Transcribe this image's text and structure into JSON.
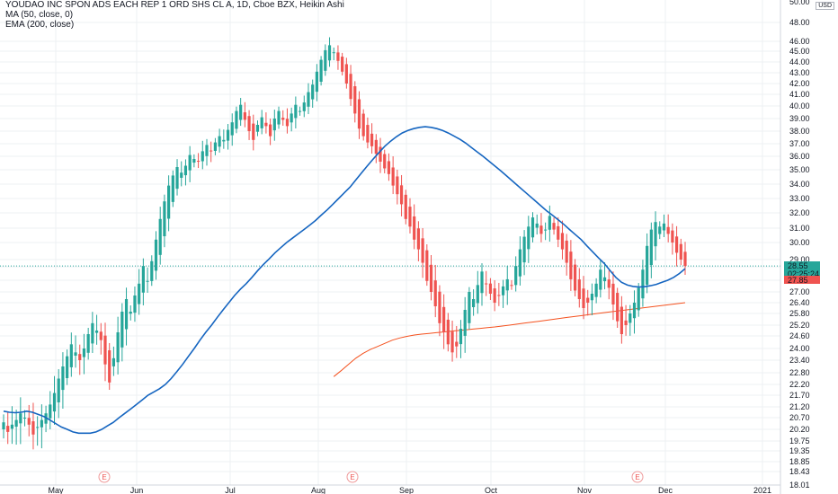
{
  "legend": {
    "title": "YOUDAO INC SPON ADS EACH REP 1 ORD SHS CL A, 1D, Cboe BZX, Heikin Ashi",
    "ma": "MA (50, close, 0)",
    "ema": "EMA (200, close)"
  },
  "currency": "USD",
  "colors": {
    "up": "#26a69a",
    "down": "#ef5350",
    "ma": "#1565c0",
    "ema": "#f4511e",
    "grid": "#eef0f3",
    "price_line": "#26a69a"
  },
  "chart_data": {
    "type": "candlestick",
    "style": "Heikin Ashi",
    "x_labels": [
      "May",
      "Jun",
      "Jul",
      "Aug",
      "Sep",
      "Oct",
      "Nov",
      "Dec",
      "2021"
    ],
    "y_ticks": [
      "18.01",
      "18.43",
      "18.85",
      "19.35",
      "19.75",
      "20.20",
      "20.70",
      "21.20",
      "21.70",
      "22.20",
      "22.80",
      "23.40",
      "24.00",
      "24.60",
      "25.20",
      "25.80",
      "26.40",
      "27.00",
      "27.85",
      "28.55",
      "29.00",
      "30.00",
      "31.00",
      "32.00",
      "33.00",
      "34.00",
      "35.00",
      "36.00",
      "37.00",
      "38.00",
      "39.00",
      "40.00",
      "41.00",
      "42.00",
      "43.00",
      "44.00",
      "45.00",
      "46.00",
      "48.00"
    ],
    "top_tick": "50.00",
    "price_labels": [
      {
        "text": "28.55",
        "color": "#26a69a"
      },
      {
        "text": "02:25:24",
        "color": "#26a69a"
      },
      {
        "text": "27.85",
        "color": "#ef5350"
      }
    ],
    "earnings_marker": "E",
    "earnings_count": 3,
    "grid": true,
    "candle_count": 162,
    "closes": [
      20.5,
      20.1,
      20.4,
      20.6,
      20.9,
      20.7,
      20.4,
      20.0,
      20.3,
      20.6,
      20.9,
      21.3,
      21.8,
      22.5,
      23.1,
      23.6,
      24.2,
      23.8,
      23.4,
      24.0,
      24.7,
      25.3,
      24.9,
      24.4,
      23.2,
      22.3,
      23.5,
      24.8,
      25.9,
      26.6,
      25.9,
      26.8,
      27.6,
      28.6,
      27.8,
      28.9,
      30.2,
      31.6,
      32.8,
      33.9,
      34.6,
      35.2,
      34.8,
      35.3,
      36.1,
      35.8,
      35.6,
      36.4,
      36.9,
      36.4,
      37.1,
      37.6,
      37.3,
      38.1,
      38.7,
      39.6,
      40.1,
      38.9,
      38.0,
      37.3,
      38.5,
      39.1,
      38.4,
      37.6,
      39.0,
      39.6,
      38.9,
      38.4,
      39.4,
      40.1,
      39.6,
      40.3,
      41.2,
      41.9,
      43.1,
      44.2,
      45.1,
      45.6,
      44.9,
      44.1,
      43.1,
      42.0,
      40.6,
      39.4,
      38.2,
      37.6,
      37.1,
      36.8,
      36.2,
      35.6,
      35.1,
      34.7,
      33.9,
      33.3,
      32.6,
      31.6,
      31.1,
      30.2,
      29.6,
      28.8,
      27.8,
      27.0,
      26.2,
      25.3,
      24.8,
      24.2,
      23.8,
      24.1,
      25.0,
      26.0,
      27.0,
      26.6,
      27.5,
      28.3,
      27.6,
      26.9,
      26.4,
      26.8,
      27.4,
      27.9,
      27.5,
      28.6,
      29.6,
      30.4,
      31.1,
      31.7,
      31.3,
      30.6,
      30.9,
      31.8,
      30.9,
      30.2,
      29.6,
      28.8,
      27.9,
      27.1,
      26.6,
      26.1,
      26.4,
      26.9,
      27.6,
      28.4,
      28.0,
      27.3,
      26.3,
      25.4,
      24.7,
      25.2,
      25.8,
      26.4,
      27.3,
      28.4,
      29.8,
      30.9,
      31.4,
      31.1,
      31.3,
      30.6,
      30.0,
      29.4,
      29.0,
      28.6
    ],
    "ma50": {
      "name": "MA (50, close, 0)",
      "start_index": 0,
      "values": [
        21.0,
        20.95,
        20.93,
        20.95,
        21.0,
        20.95,
        20.85,
        20.75,
        20.6,
        20.45,
        20.3,
        20.2,
        20.1,
        20.05,
        20.05,
        20.05,
        20.1,
        20.2,
        20.35,
        20.5,
        20.7,
        20.9,
        21.1,
        21.3,
        21.5,
        21.7,
        21.85,
        22.0,
        22.2,
        22.5,
        22.85,
        23.2,
        23.6,
        24.0,
        24.4,
        24.8,
        25.2,
        25.6,
        26.0,
        26.4,
        26.8,
        27.2,
        27.6,
        28.0,
        28.35,
        28.7,
        29.05,
        29.4,
        29.7,
        30.0,
        30.3,
        30.6,
        30.9,
        31.2,
        31.5,
        31.85,
        32.2,
        32.6,
        33.0,
        33.4,
        33.8,
        34.3,
        34.8,
        35.3,
        35.8,
        36.3,
        36.8,
        37.2,
        37.55,
        37.85,
        38.05,
        38.2,
        38.3,
        38.35,
        38.3,
        38.2,
        38.05,
        37.85,
        37.6,
        37.35,
        37.05,
        36.7,
        36.35,
        36.0,
        35.65,
        35.3,
        34.95,
        34.6,
        34.25,
        33.9,
        33.55,
        33.2,
        32.85,
        32.5,
        32.15,
        31.85,
        31.55,
        31.25,
        30.9,
        30.55,
        30.2,
        29.8,
        29.45,
        29.1,
        28.75,
        28.35,
        28.0,
        27.7,
        27.5,
        27.4,
        27.35,
        27.38,
        27.45,
        27.55,
        27.7,
        27.85,
        28.0,
        28.2,
        28.45
      ],
      "color": "#1565c0"
    },
    "ema200": {
      "name": "EMA (200, close)",
      "values": [
        22.6,
        22.9,
        23.2,
        23.5,
        23.75,
        23.95,
        24.1,
        24.25,
        24.4,
        24.5,
        24.58,
        24.65,
        24.7,
        24.74,
        24.78,
        24.82,
        24.86,
        24.9,
        24.94,
        24.98,
        25.02,
        25.06,
        25.1,
        25.15,
        25.2,
        25.25,
        25.3,
        25.35,
        25.4,
        25.45,
        25.5,
        25.55,
        25.6,
        25.65,
        25.7,
        25.75,
        25.8,
        25.85,
        25.9,
        25.95,
        26.0,
        26.05,
        26.1,
        26.15,
        26.2,
        26.25,
        26.3,
        26.35,
        26.4
      ],
      "color": "#f4511e"
    }
  }
}
